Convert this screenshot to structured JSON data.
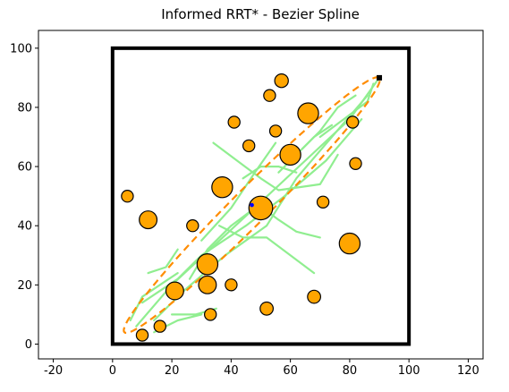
{
  "chart_data": {
    "type": "scatter",
    "title": "Informed RRT* - Bezier Spline",
    "xlabel": "",
    "ylabel": "",
    "xlim": [
      -25,
      125
    ],
    "ylim": [
      -5,
      106
    ],
    "xticks": [
      -20,
      0,
      20,
      40,
      60,
      80,
      100,
      120
    ],
    "yticks": [
      0,
      20,
      40,
      60,
      80,
      100
    ],
    "grid": false,
    "colors": {
      "obstacle_fill": "#ffa500",
      "obstacle_edge": "#000000",
      "tree": "#90ee90",
      "ellipse": "#ff8c00",
      "boundary": "#000000",
      "sample": "#0000ff"
    },
    "boundary": {
      "x": [
        0,
        100
      ],
      "y": [
        0,
        100
      ]
    },
    "obstacles": [
      {
        "x": 5,
        "y": 50,
        "r": 2
      },
      {
        "x": 12,
        "y": 42,
        "r": 3
      },
      {
        "x": 10,
        "y": 3,
        "r": 2
      },
      {
        "x": 16,
        "y": 6,
        "r": 2
      },
      {
        "x": 21,
        "y": 18,
        "r": 3
      },
      {
        "x": 27,
        "y": 40,
        "r": 2
      },
      {
        "x": 32,
        "y": 20,
        "r": 3
      },
      {
        "x": 32,
        "y": 27,
        "r": 3.5
      },
      {
        "x": 33,
        "y": 10,
        "r": 2
      },
      {
        "x": 37,
        "y": 53,
        "r": 3.5
      },
      {
        "x": 40,
        "y": 20,
        "r": 2
      },
      {
        "x": 41,
        "y": 75,
        "r": 2
      },
      {
        "x": 46,
        "y": 67,
        "r": 2
      },
      {
        "x": 50,
        "y": 46,
        "r": 4
      },
      {
        "x": 52,
        "y": 12,
        "r": 2.2
      },
      {
        "x": 53,
        "y": 84,
        "r": 2
      },
      {
        "x": 55,
        "y": 72,
        "r": 2
      },
      {
        "x": 57,
        "y": 89,
        "r": 2.3
      },
      {
        "x": 60,
        "y": 64,
        "r": 3.5
      },
      {
        "x": 66,
        "y": 78,
        "r": 3.5
      },
      {
        "x": 68,
        "y": 16,
        "r": 2.2
      },
      {
        "x": 71,
        "y": 48,
        "r": 2
      },
      {
        "x": 80,
        "y": 34,
        "r": 3.5
      },
      {
        "x": 81,
        "y": 75,
        "r": 2
      },
      {
        "x": 82,
        "y": 61,
        "r": 2
      }
    ],
    "ellipse": {
      "start": [
        4,
        4
      ],
      "goal": [
        90,
        90
      ],
      "minor_radius": 6
    },
    "tree_branches": [
      [
        [
          8,
          6
        ],
        [
          20,
          20
        ],
        [
          35,
          34
        ],
        [
          50,
          48
        ],
        [
          65,
          62
        ],
        [
          80,
          76
        ],
        [
          90,
          90
        ]
      ],
      [
        [
          10,
          14
        ],
        [
          22,
          22
        ],
        [
          30,
          30
        ],
        [
          45,
          40
        ],
        [
          58,
          50
        ],
        [
          72,
          62
        ],
        [
          84,
          76
        ]
      ],
      [
        [
          14,
          8
        ],
        [
          24,
          18
        ],
        [
          38,
          30
        ],
        [
          52,
          40
        ],
        [
          62,
          56
        ],
        [
          74,
          70
        ],
        [
          86,
          84
        ]
      ],
      [
        [
          30,
          35
        ],
        [
          40,
          46
        ],
        [
          48,
          58
        ],
        [
          55,
          68
        ]
      ],
      [
        [
          34,
          68
        ],
        [
          42,
          62
        ],
        [
          50,
          56
        ],
        [
          56,
          52
        ],
        [
          70,
          54
        ],
        [
          76,
          64
        ]
      ],
      [
        [
          36,
          40
        ],
        [
          44,
          36
        ],
        [
          52,
          36
        ],
        [
          60,
          30
        ],
        [
          68,
          24
        ]
      ],
      [
        [
          20,
          10
        ],
        [
          28,
          10
        ],
        [
          35,
          12
        ]
      ],
      [
        [
          12,
          24
        ],
        [
          18,
          26
        ],
        [
          22,
          32
        ]
      ],
      [
        [
          14,
          4
        ],
        [
          22,
          8
        ],
        [
          30,
          10
        ]
      ],
      [
        [
          56,
          58
        ],
        [
          62,
          64
        ],
        [
          68,
          70
        ],
        [
          74,
          74
        ]
      ],
      [
        [
          64,
          66
        ],
        [
          70,
          72
        ],
        [
          76,
          80
        ],
        [
          82,
          84
        ]
      ],
      [
        [
          44,
          56
        ],
        [
          50,
          60
        ],
        [
          56,
          60
        ],
        [
          62,
          58
        ]
      ],
      [
        [
          26,
          22
        ],
        [
          32,
          32
        ],
        [
          40,
          40
        ],
        [
          48,
          46
        ]
      ],
      [
        [
          48,
          48
        ],
        [
          56,
          42
        ],
        [
          62,
          38
        ],
        [
          70,
          36
        ]
      ],
      [
        [
          70,
          70
        ],
        [
          78,
          76
        ],
        [
          86,
          82
        ],
        [
          88,
          88
        ]
      ],
      [
        [
          6,
          8
        ],
        [
          10,
          16
        ],
        [
          16,
          20
        ],
        [
          22,
          24
        ]
      ]
    ],
    "sample_point": {
      "x": 47,
      "y": 47
    },
    "goal_marker": {
      "x": 90,
      "y": 90
    }
  }
}
